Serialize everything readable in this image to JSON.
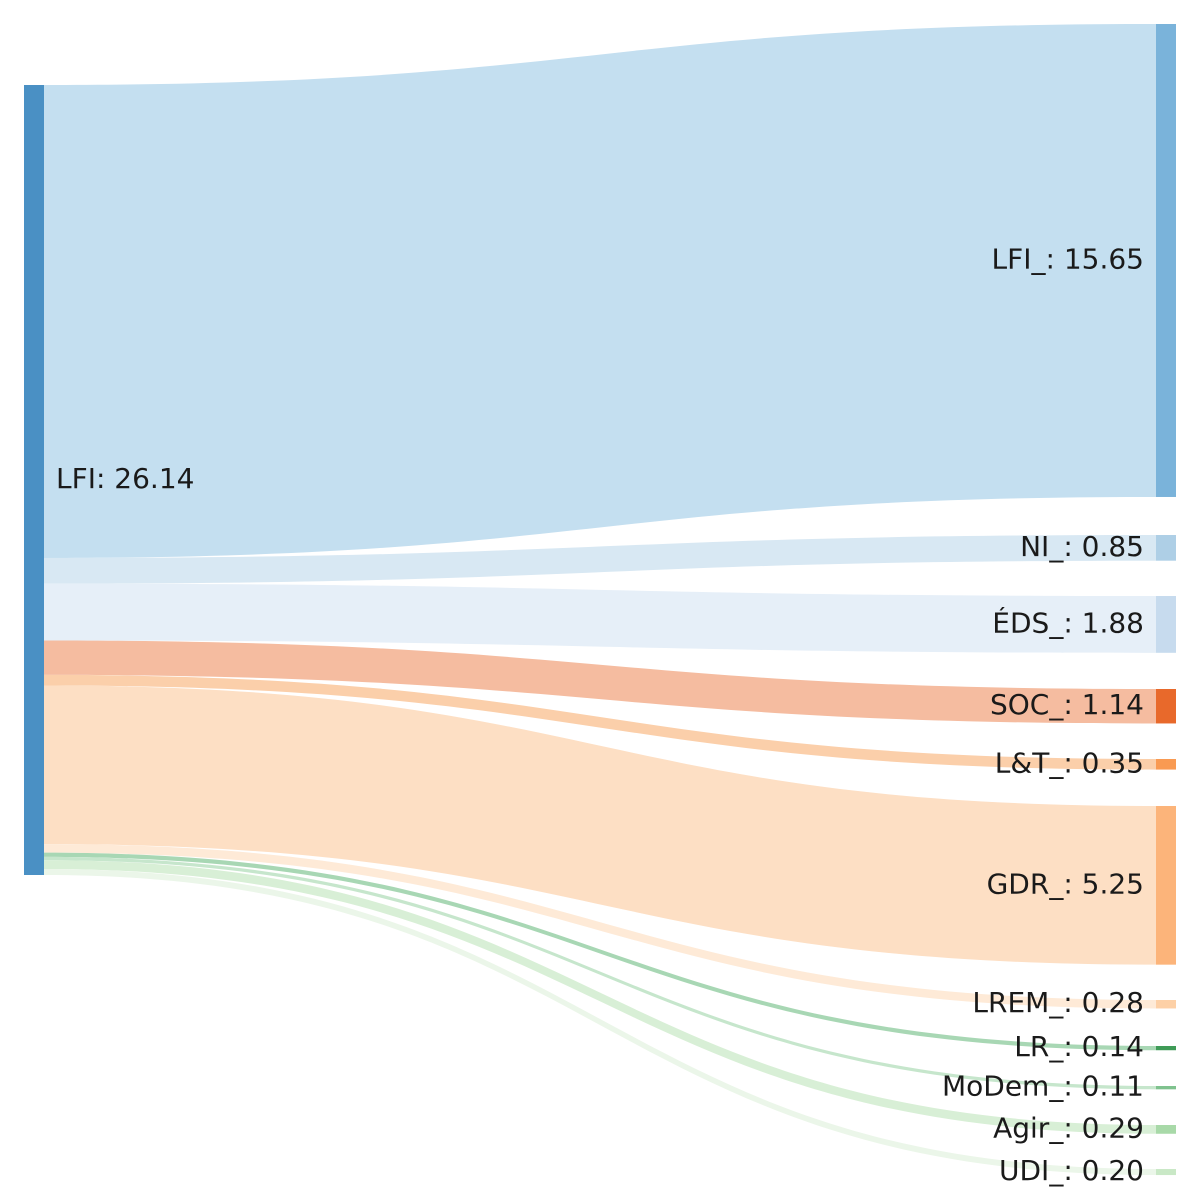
{
  "chart_data": {
    "type": "sankey",
    "source": {
      "name": "LFI",
      "value": 26.14,
      "label": "LFI: 26.14",
      "color": "#4a90c4"
    },
    "targets": [
      {
        "name": "LFI_",
        "value": 15.65,
        "label": "LFI_: 15.65",
        "node_color": "#7ab3da",
        "link_color": "#c4dff0"
      },
      {
        "name": "NI_",
        "value": 0.85,
        "label": "NI_: 0.85",
        "node_color": "#aecfe6",
        "link_color": "#d8e8f3"
      },
      {
        "name": "ÉDS_",
        "value": 1.88,
        "label": "ÉDS_: 1.88",
        "node_color": "#c7dbee",
        "link_color": "#e6eff8"
      },
      {
        "name": "SOC_",
        "value": 1.14,
        "label": "SOC_: 1.14",
        "node_color": "#e8692b",
        "link_color": "#f5bca0"
      },
      {
        "name": "L&T_",
        "value": 0.35,
        "label": "L&T_: 0.35",
        "node_color": "#f99a52",
        "link_color": "#fbcfaa"
      },
      {
        "name": "GDR_",
        "value": 5.25,
        "label": "GDR_: 5.25",
        "node_color": "#fcb47a",
        "link_color": "#fddfc4"
      },
      {
        "name": "LREM_",
        "value": 0.28,
        "label": "LREM_: 0.28",
        "node_color": "#fdd0a6",
        "link_color": "#feead7"
      },
      {
        "name": "LR_",
        "value": 0.14,
        "label": "LR_: 0.14",
        "node_color": "#3f9b57",
        "link_color": "#a8d7b4"
      },
      {
        "name": "MoDem_",
        "value": 0.11,
        "label": "MoDem_: 0.11",
        "node_color": "#7fc28e",
        "link_color": "#c6e6cc"
      },
      {
        "name": "Agir_",
        "value": 0.29,
        "label": "Agir_: 0.29",
        "node_color": "#a8d9a8",
        "link_color": "#d8efd6"
      },
      {
        "name": "UDI_",
        "value": 0.2,
        "label": "UDI_: 0.20",
        "node_color": "#c9e8c6",
        "link_color": "#ebf6e9"
      }
    ]
  }
}
